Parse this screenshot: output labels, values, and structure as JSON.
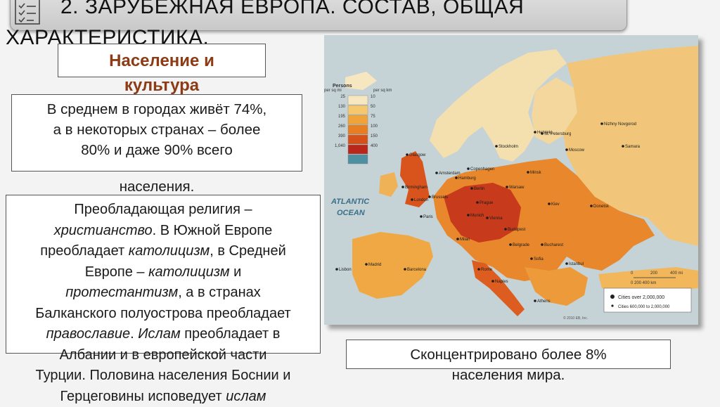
{
  "slide": {
    "title": "2. ЗАРУБЕЖНАЯ ЕВРОПА. СОСТАВ, ОБЩАЯ ХАРАКТЕРИСТИКА.",
    "title_line1": "2. ЗАРУБЕЖНАЯ ЕВРОПА. СОСТАВ, ОБЩАЯ",
    "title_line2": "ХАРАКТЕРИСТИКА.",
    "title_icon": "checklist-icon"
  },
  "tag": {
    "line1": "Население и",
    "line2": "культура"
  },
  "urban_box": {
    "line1": "В среднем в городах живёт 74%,",
    "line2": "а в некоторых странах – более",
    "line3": "80% и даже 90% всего",
    "line4": "населения."
  },
  "religion_box": {
    "l1": "Преобладающая религия –",
    "l2_italic": "христианство",
    "l2_rest": ". В Южной Европе",
    "l3_a": "преобладает ",
    "l3_italic": "католицизм",
    "l3_b": ", в Средней",
    "l4_a": "Европе – ",
    "l4_italic": "католицизм",
    "l4_b": " и",
    "l5_italic": "протестантизм",
    "l5_b": ", а в странах",
    "l6": "Балканского полуострова преобладает",
    "l7_italic": "православие",
    "l7_b": ". ",
    "l7_italic2": "Ислам",
    "l7_c": " преобладает в",
    "l8": "Албании и в европейской части",
    "l9": "Турции. Половина населения Боснии и",
    "l10_a": "Герцеговины исповедует ",
    "l10_italic": "ислам"
  },
  "concentrated_box": {
    "line1": "Сконцентрировано более 8%",
    "line2": "населения мира."
  },
  "map": {
    "ocean_label_1": "ATLANTIC",
    "ocean_label_2": "OCEAN",
    "legend": {
      "title": "Persons",
      "unit_left": "per sq mi",
      "unit_right": "per sq km",
      "rows": [
        {
          "mi": "25",
          "km": "10",
          "color": "#f6e7c0"
        },
        {
          "mi": "130",
          "km": "50",
          "color": "#f5c86e"
        },
        {
          "mi": "195",
          "km": "75",
          "color": "#efa339"
        },
        {
          "mi": "260",
          "km": "100",
          "color": "#e87d22"
        },
        {
          "mi": "390",
          "km": "150",
          "color": "#d6511a"
        },
        {
          "mi": "1,040",
          "km": "400",
          "color": "#b8271a"
        },
        {
          "mi": "",
          "km": "",
          "color": "#4f8fa2"
        }
      ]
    },
    "cities_legend": {
      "big": "Cities over 2,000,000",
      "medium": "Cities 600,000 to 2,000,000"
    },
    "scale": {
      "km0": "0",
      "km200": "200",
      "km400": "400 mi",
      "km_row": "0   200   400 km"
    },
    "copyright": "© 2010 EB, Inc.",
    "cities": [
      "Glasgow",
      "Stockholm",
      "Helsinki",
      "St. Petersburg",
      "Nizhny Novgorod",
      "Moscow",
      "Samara",
      "Copenhagen",
      "Amsterdam",
      "Hamburg",
      "Birmingham",
      "London",
      "Berlin",
      "Warsaw",
      "Minsk",
      "Paris",
      "Kiev",
      "Donetsk",
      "Budapest",
      "Milan",
      "Belgrade",
      "Bucharest",
      "Madrid",
      "Barcelona",
      "Rome",
      "Naples",
      "Istanbul",
      "Lisbon",
      "Vienna",
      "Munich",
      "Brussels",
      "Prague",
      "Sofia",
      "Athens"
    ]
  }
}
